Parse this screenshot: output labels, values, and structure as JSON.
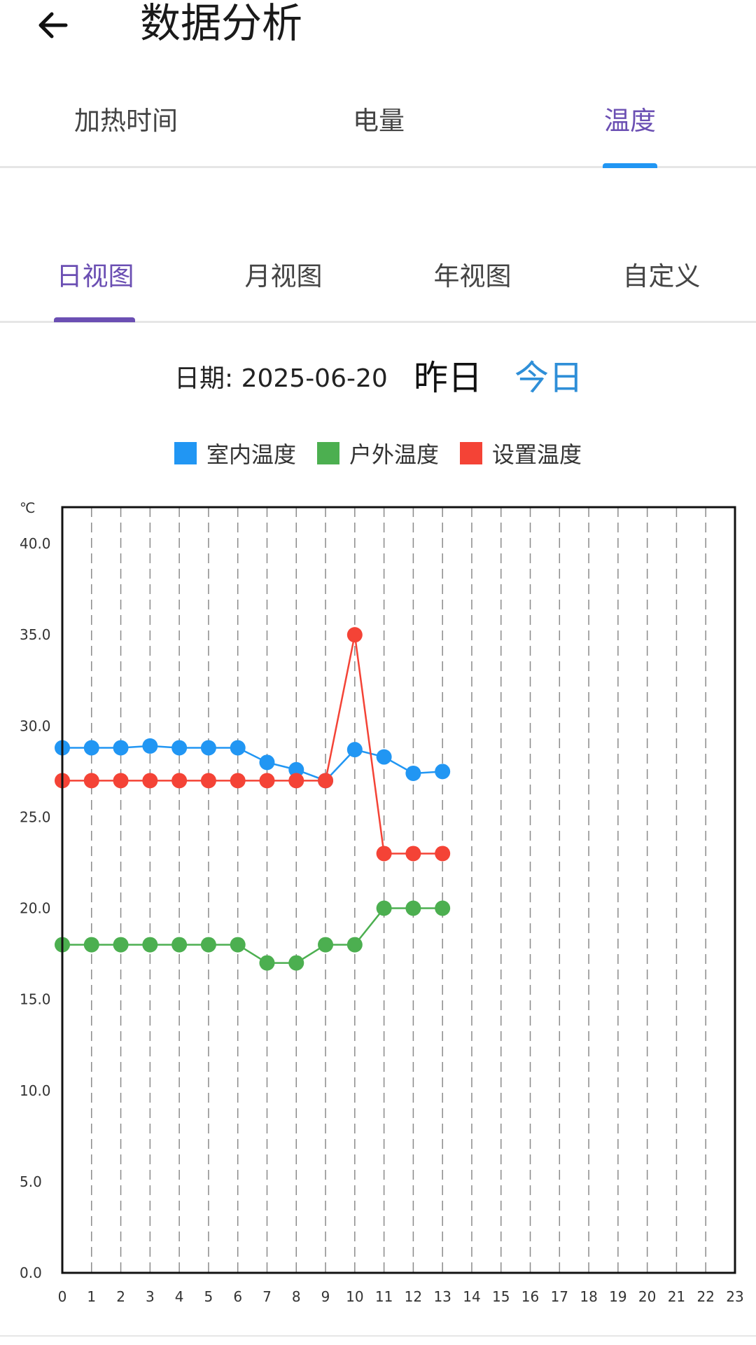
{
  "header": {
    "title": "数据分析",
    "back_icon": "arrow-left-icon"
  },
  "tabs": [
    {
      "label": "加热时间"
    },
    {
      "label": "电量"
    },
    {
      "label": "温度",
      "active": true
    }
  ],
  "subtabs": [
    {
      "label": "日视图",
      "active": true
    },
    {
      "label": "月视图"
    },
    {
      "label": "年视图"
    },
    {
      "label": "自定义"
    }
  ],
  "date_row": {
    "date_text": "日期: 2025-06-20",
    "yesterday": "昨日",
    "today": "今日"
  },
  "colors": {
    "accent_purple": "#6b4fb3",
    "accent_blue": "#2196f3",
    "indoor": "#2196f3",
    "outdoor": "#4caf50",
    "setpoint": "#f44336"
  },
  "chart_data": {
    "type": "line",
    "ylabel": "℃",
    "ylim": [
      0,
      42
    ],
    "xlim": [
      0,
      23
    ],
    "yticks": [
      "0.0",
      "5.0",
      "10.0",
      "15.0",
      "20.0",
      "25.0",
      "30.0",
      "35.0",
      "40.0"
    ],
    "xticks": [
      "0",
      "1",
      "2",
      "3",
      "4",
      "5",
      "6",
      "7",
      "8",
      "9",
      "10",
      "11",
      "12",
      "13",
      "14",
      "15",
      "16",
      "17",
      "18",
      "19",
      "20",
      "21",
      "22",
      "23"
    ],
    "grid": "vertical dashed",
    "legend_position": "top",
    "series": [
      {
        "name": "室内温度",
        "color": "#2196f3",
        "x": [
          0,
          1,
          2,
          3,
          4,
          5,
          6,
          7,
          8,
          9,
          10,
          11,
          12,
          13
        ],
        "values": [
          28.8,
          28.8,
          28.8,
          28.9,
          28.8,
          28.8,
          28.8,
          28.0,
          27.6,
          27.0,
          28.7,
          28.3,
          27.4,
          27.5
        ]
      },
      {
        "name": "户外温度",
        "color": "#4caf50",
        "x": [
          0,
          1,
          2,
          3,
          4,
          5,
          6,
          7,
          8,
          9,
          10,
          11,
          12,
          13
        ],
        "values": [
          18,
          18,
          18,
          18,
          18,
          18,
          18,
          17,
          17,
          18,
          18,
          20,
          20,
          20
        ]
      },
      {
        "name": "设置温度",
        "color": "#f44336",
        "x": [
          0,
          1,
          2,
          3,
          4,
          5,
          6,
          7,
          8,
          9,
          10,
          11,
          12,
          13
        ],
        "values": [
          27,
          27,
          27,
          27,
          27,
          27,
          27,
          27,
          27,
          27,
          35,
          23,
          23,
          23
        ]
      }
    ]
  }
}
